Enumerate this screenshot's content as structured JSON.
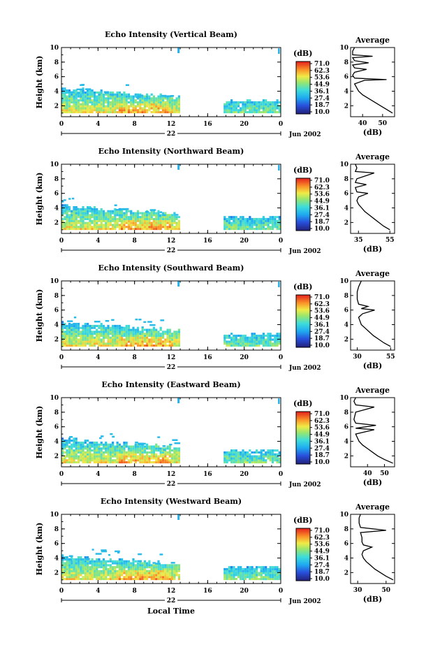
{
  "figure": {
    "x_axis_title": "Local Time",
    "date_label": "Jun 2002",
    "day_label": "22",
    "colorbar_title": "(dB)",
    "colorbar_ticks": [
      "71.0",
      "62.3",
      "53.6",
      "44.9",
      "36.1",
      "27.4",
      "18.7",
      "10.0"
    ],
    "average_title": "Average",
    "average_xlabel": "(dB)"
  },
  "chart_data": [
    {
      "type": "heatmap",
      "title": "Echo Intensity (Vertical Beam)",
      "ylabel": "Height (km)",
      "xlabel": "Local Time",
      "x_ticks": [
        "0",
        "4",
        "8",
        "12",
        "16",
        "20",
        "0"
      ],
      "y_ticks": [
        "2",
        "4",
        "6",
        "8",
        "10"
      ],
      "xlim": [
        0,
        24
      ],
      "ylim": [
        0.5,
        10
      ],
      "colorbar": {
        "min": 10.0,
        "max": 71.0,
        "unit": "dB"
      },
      "data_gap_hours": [
        13,
        17.7
      ],
      "profile": {
        "title": "Average",
        "xlabel": "(dB)",
        "x_ticks": [
          "40",
          "50"
        ],
        "xlim": [
          34,
          56
        ],
        "y_ticks": [
          "2",
          "4",
          "6",
          "8",
          "10"
        ],
        "points": [
          [
            55,
            1.0
          ],
          [
            52,
            1.5
          ],
          [
            49,
            2.0
          ],
          [
            46,
            2.5
          ],
          [
            43,
            3.0
          ],
          [
            40,
            3.5
          ],
          [
            38,
            4.0
          ],
          [
            37,
            4.5
          ],
          [
            36,
            5.0
          ],
          [
            41,
            5.5
          ],
          [
            52,
            5.6
          ],
          [
            36,
            5.8
          ],
          [
            35,
            6.2
          ],
          [
            36,
            6.6
          ],
          [
            42,
            7.0
          ],
          [
            36,
            7.2
          ],
          [
            35,
            7.6
          ],
          [
            43,
            7.9
          ],
          [
            36,
            8.2
          ],
          [
            35,
            8.6
          ],
          [
            45,
            8.8
          ],
          [
            35,
            9.0
          ],
          [
            35,
            9.5
          ],
          [
            36,
            10.0
          ]
        ]
      }
    },
    {
      "type": "heatmap",
      "title": "Echo Intensity (Northward Beam)",
      "ylabel": "Height (km)",
      "xlabel": "Local Time",
      "x_ticks": [
        "0",
        "4",
        "8",
        "12",
        "16",
        "20",
        "0"
      ],
      "y_ticks": [
        "2",
        "4",
        "6",
        "8",
        "10"
      ],
      "xlim": [
        0,
        24
      ],
      "ylim": [
        0.5,
        10
      ],
      "colorbar": {
        "min": 10.0,
        "max": 71.0,
        "unit": "dB"
      },
      "data_gap_hours": [
        13,
        17.7
      ],
      "profile": {
        "title": "Average",
        "xlabel": "(dB)",
        "x_ticks": [
          "35",
          "55"
        ],
        "xlim": [
          30,
          58
        ],
        "y_ticks": [
          "2",
          "4",
          "6",
          "8",
          "10"
        ],
        "points": [
          [
            55,
            1.0
          ],
          [
            51,
            1.5
          ],
          [
            48,
            2.0
          ],
          [
            45,
            2.5
          ],
          [
            42,
            3.0
          ],
          [
            39,
            3.5
          ],
          [
            37,
            4.0
          ],
          [
            35,
            4.5
          ],
          [
            34,
            5.0
          ],
          [
            35,
            5.5
          ],
          [
            41,
            6.0
          ],
          [
            34,
            6.2
          ],
          [
            33,
            6.8
          ],
          [
            40,
            7.2
          ],
          [
            33,
            7.5
          ],
          [
            34,
            8.0
          ],
          [
            45,
            8.8
          ],
          [
            33,
            9.0
          ],
          [
            34,
            9.5
          ],
          [
            33,
            10.0
          ]
        ]
      }
    },
    {
      "type": "heatmap",
      "title": "Echo Intensity (Southward Beam)",
      "ylabel": "Height (km)",
      "xlabel": "Local Time",
      "x_ticks": [
        "0",
        "4",
        "8",
        "12",
        "16",
        "20",
        "0"
      ],
      "y_ticks": [
        "2",
        "4",
        "6",
        "8",
        "10"
      ],
      "xlim": [
        0,
        24
      ],
      "ylim": [
        0.5,
        10
      ],
      "colorbar": {
        "min": 10.0,
        "max": 71.0,
        "unit": "dB"
      },
      "data_gap_hours": [
        13,
        17.7
      ],
      "profile": {
        "title": "Average",
        "xlabel": "(dB)",
        "x_ticks": [
          "30",
          "55"
        ],
        "xlim": [
          25,
          58
        ],
        "y_ticks": [
          "2",
          "4",
          "6",
          "8",
          "10"
        ],
        "points": [
          [
            55,
            1.0
          ],
          [
            50,
            1.5
          ],
          [
            46,
            2.0
          ],
          [
            42,
            2.5
          ],
          [
            39,
            3.0
          ],
          [
            36,
            3.5
          ],
          [
            33,
            4.0
          ],
          [
            32,
            4.5
          ],
          [
            31,
            5.0
          ],
          [
            34,
            5.5
          ],
          [
            43,
            6.0
          ],
          [
            33,
            6.2
          ],
          [
            38,
            6.5
          ],
          [
            31,
            6.8
          ],
          [
            30,
            7.5
          ],
          [
            30,
            8.5
          ],
          [
            31,
            9.2
          ],
          [
            32,
            9.6
          ],
          [
            33,
            10.0
          ]
        ]
      }
    },
    {
      "type": "heatmap",
      "title": "Echo Intensity (Eastward Beam)",
      "ylabel": "Height (km)",
      "xlabel": "Local Time",
      "x_ticks": [
        "0",
        "4",
        "8",
        "12",
        "16",
        "20",
        "0"
      ],
      "y_ticks": [
        "2",
        "4",
        "6",
        "8",
        "10"
      ],
      "xlim": [
        0,
        24
      ],
      "ylim": [
        0.5,
        10
      ],
      "colorbar": {
        "min": 10.0,
        "max": 71.0,
        "unit": "dB"
      },
      "data_gap_hours": [
        13,
        17.7
      ],
      "profile": {
        "title": "Average",
        "xlabel": "(dB)",
        "x_ticks": [
          "40",
          "50"
        ],
        "xlim": [
          30,
          56
        ],
        "y_ticks": [
          "2",
          "4",
          "6",
          "8",
          "10"
        ],
        "points": [
          [
            55,
            1.0
          ],
          [
            50,
            1.5
          ],
          [
            46,
            2.0
          ],
          [
            43,
            2.5
          ],
          [
            40,
            3.0
          ],
          [
            37,
            3.5
          ],
          [
            35,
            4.0
          ],
          [
            34,
            4.5
          ],
          [
            33,
            5.0
          ],
          [
            44,
            5.6
          ],
          [
            33,
            5.8
          ],
          [
            45,
            6.2
          ],
          [
            33,
            6.5
          ],
          [
            32,
            7.0
          ],
          [
            33,
            8.0
          ],
          [
            44,
            8.7
          ],
          [
            33,
            9.0
          ],
          [
            32,
            9.5
          ],
          [
            33,
            10.0
          ]
        ]
      }
    },
    {
      "type": "heatmap",
      "title": "Echo Intensity (Westward Beam)",
      "ylabel": "Height (km)",
      "xlabel": "Local Time",
      "x_ticks": [
        "0",
        "4",
        "8",
        "12",
        "16",
        "20",
        "0"
      ],
      "y_ticks": [
        "2",
        "4",
        "6",
        "8",
        "10"
      ],
      "xlim": [
        0,
        24
      ],
      "ylim": [
        0.5,
        10
      ],
      "colorbar": {
        "min": 10.0,
        "max": 71.0,
        "unit": "dB"
      },
      "data_gap_hours": [
        13,
        17.7
      ],
      "profile": {
        "title": "Average",
        "xlabel": "(dB)",
        "x_ticks": [
          "30",
          "50"
        ],
        "xlim": [
          25,
          56
        ],
        "y_ticks": [
          "2",
          "4",
          "6",
          "8",
          "10"
        ],
        "points": [
          [
            55,
            1.0
          ],
          [
            50,
            1.5
          ],
          [
            46,
            2.0
          ],
          [
            42,
            2.5
          ],
          [
            39,
            3.0
          ],
          [
            36,
            3.5
          ],
          [
            34,
            4.0
          ],
          [
            33,
            4.5
          ],
          [
            34,
            5.0
          ],
          [
            40,
            5.5
          ],
          [
            34,
            5.8
          ],
          [
            33,
            6.2
          ],
          [
            33,
            6.8
          ],
          [
            32,
            7.5
          ],
          [
            50,
            7.8
          ],
          [
            32,
            8.2
          ],
          [
            31,
            8.8
          ],
          [
            31,
            9.5
          ],
          [
            32,
            10.0
          ]
        ]
      }
    }
  ]
}
